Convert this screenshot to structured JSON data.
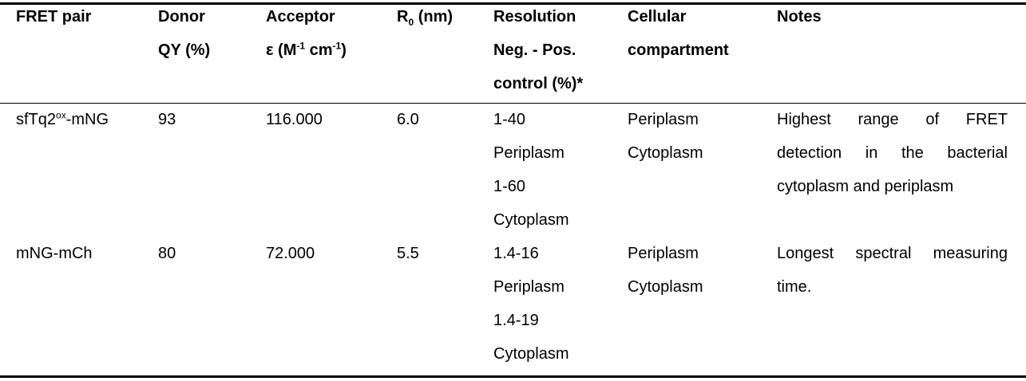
{
  "table": {
    "header": [
      "FRET pair",
      [
        "Donor",
        "QY (%)"
      ],
      [
        "Acceptor",
        "ε (M",
        "-1",
        " cm",
        "-1",
        ")"
      ],
      [
        "R",
        "0",
        " (nm)"
      ],
      [
        "Resolution",
        "Neg. - Pos.",
        "control (%)*"
      ],
      [
        "Cellular",
        "compartment"
      ],
      "Notes"
    ],
    "rows": [
      [
        [
          "sfTq2",
          "ox",
          "-mNG"
        ],
        "93",
        "116.000",
        "6.0",
        [
          "1-40",
          "Periplasm",
          "1-60",
          "Cytoplasm"
        ],
        [
          "Periplasm",
          "Cytoplasm"
        ],
        "Highest range of FRET detection in the bacterial cytoplasm and periplasm"
      ],
      [
        "mNG-mCh",
        "80",
        "72.000",
        "5.5",
        [
          "1.4-16",
          "Periplasm",
          "1.4-19",
          "Cytoplasm"
        ],
        [
          "Periplasm",
          "Cytoplasm"
        ],
        "Longest spectral measuring time."
      ]
    ]
  }
}
